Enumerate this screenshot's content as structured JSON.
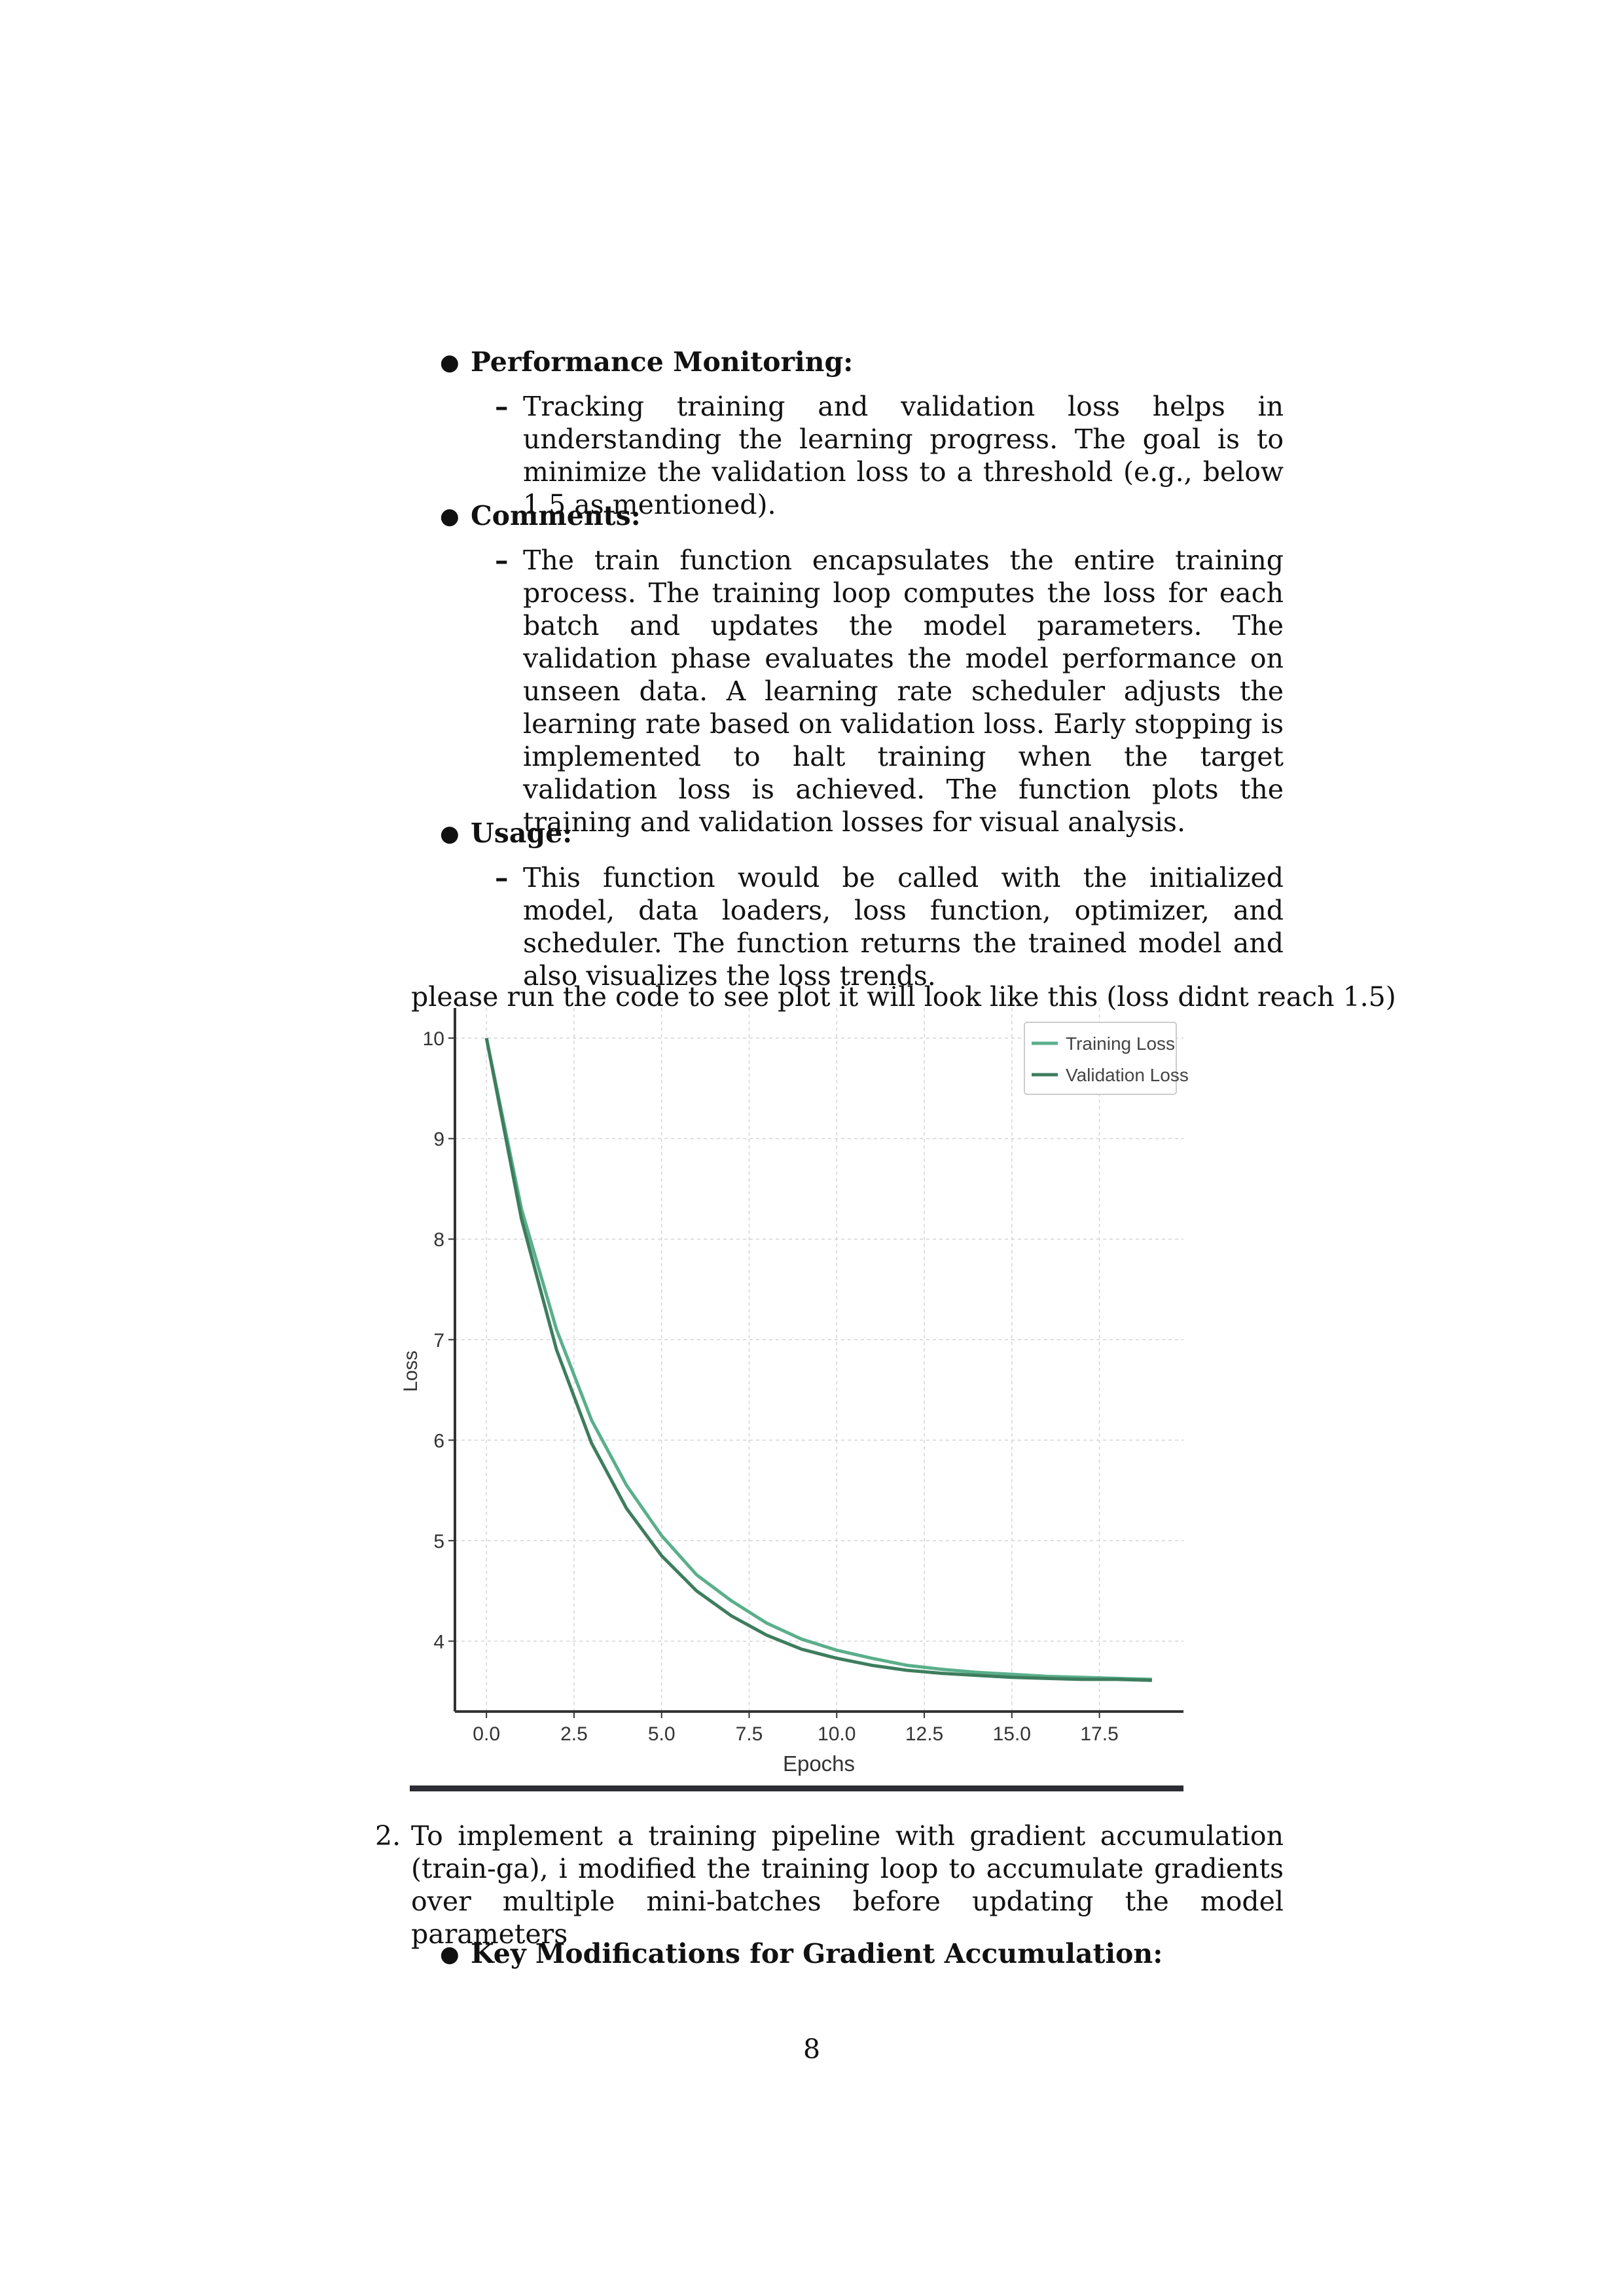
{
  "sections": {
    "performance_monitoring": {
      "heading": "Performance Monitoring:",
      "text": "Tracking training and validation loss helps in understanding the learning progress. The goal is to minimize the validation loss to a threshold (e.g., below 1.5 as mentioned)."
    },
    "comments": {
      "heading": "Comments:",
      "text": "The train function encapsulates the entire training process. The training loop computes the loss for each batch and updates the model parameters. The validation phase evaluates the model performance on unseen data. A learning rate scheduler adjusts the learning rate based on validation loss. Early stopping is implemented to halt training when the target validation loss is achieved. The function plots the training and validation losses for visual analysis."
    },
    "usage": {
      "heading": "Usage:",
      "text": "This function would be called with the initialized model, data loaders, loss function, optimizer, and scheduler. The function returns the trained model and also visualizes the loss trends."
    }
  },
  "plot_note": "please run the code to see plot it will look like this (loss didnt reach 1.5)",
  "chart_data": {
    "type": "line",
    "xlabel": "Epochs",
    "ylabel": "Loss",
    "xlim": [
      -0.9,
      19.9
    ],
    "ylim": [
      3.3,
      10.3
    ],
    "xticks": [
      0.0,
      2.5,
      5.0,
      7.5,
      10.0,
      12.5,
      15.0,
      17.5
    ],
    "xtick_labels": [
      "0.0",
      "2.5",
      "5.0",
      "7.5",
      "10.0",
      "12.5",
      "15.0",
      "17.5"
    ],
    "yticks": [
      4,
      5,
      6,
      7,
      8,
      9,
      10
    ],
    "ytick_labels": [
      "4",
      "5",
      "6",
      "7",
      "8",
      "9",
      "10"
    ],
    "grid": true,
    "legend_position": "top-right",
    "x": [
      0,
      1,
      2,
      3,
      4,
      5,
      6,
      7,
      8,
      9,
      10,
      11,
      12,
      13,
      14,
      15,
      16,
      17,
      18,
      19
    ],
    "series": [
      {
        "name": "Training Loss",
        "color": "#5aaf8b",
        "values": [
          10.0,
          8.3,
          7.1,
          6.2,
          5.55,
          5.05,
          4.66,
          4.4,
          4.18,
          4.02,
          3.91,
          3.83,
          3.76,
          3.72,
          3.69,
          3.67,
          3.65,
          3.64,
          3.63,
          3.62
        ]
      },
      {
        "name": "Validation Loss",
        "color": "#3d7d5e",
        "values": [
          10.0,
          8.2,
          6.9,
          5.97,
          5.32,
          4.85,
          4.5,
          4.25,
          4.06,
          3.92,
          3.83,
          3.76,
          3.71,
          3.68,
          3.66,
          3.64,
          3.63,
          3.62,
          3.62,
          3.61
        ]
      }
    ]
  },
  "item2": {
    "number": "2.",
    "text": "To implement a training pipeline with gradient accumulation (train-ga), i modified the training loop to accumulate gradients over multiple mini-batches before updating the model parameters",
    "sub_heading": "Key Modifications for Gradient Accumulation:"
  },
  "page_number": "8"
}
